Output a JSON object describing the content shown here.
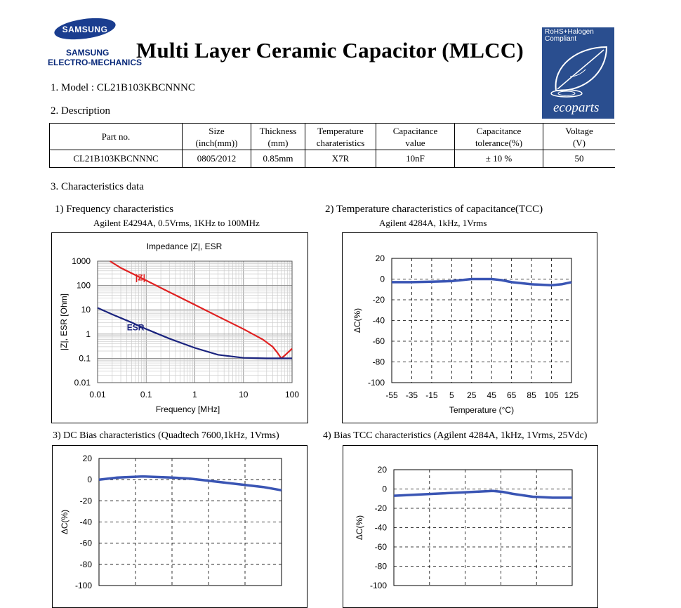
{
  "logo": {
    "brand": "SAMSUNG",
    "line1": "SAMSUNG",
    "line2": "ELECTRO-MECHANICS"
  },
  "title": "Multi Layer Ceramic Capacitor (MLCC)",
  "eco_badge": {
    "line1": "RoHS+Halogen",
    "line2": "Compliant",
    "brand": "ecoparts"
  },
  "model_line": "1. Model : CL21B103KBCNNNC",
  "description_heading": "2. Description",
  "spec_table": {
    "headers": [
      [
        "Part no."
      ],
      [
        "Size",
        "(inch(mm))"
      ],
      [
        "Thickness",
        "(mm)"
      ],
      [
        "Temperature",
        "charateristics"
      ],
      [
        "Capacitance",
        "value"
      ],
      [
        "Capacitance",
        "tolerance(%)"
      ],
      [
        "Voltage",
        "(V)"
      ]
    ],
    "row": [
      "CL21B103KBCNNNC",
      "0805/2012",
      "0.85mm",
      "X7R",
      "10nF",
      "± 10 %",
      "50"
    ]
  },
  "characteristics_heading": "3. Characteristics data",
  "charts": {
    "c1": {
      "heading": "1) Frequency characteristics",
      "sub": "Agilent E4294A, 0.5Vrms, 1KHz to 100MHz"
    },
    "c2": {
      "heading": "2) Temperature characteristics of capacitance(TCC)",
      "sub": "Agilent 4284A, 1kHz, 1Vrms"
    },
    "c3": {
      "heading": "3) DC Bias characteristics (Quadtech 7600,1kHz, 1Vrms)"
    },
    "c4": {
      "heading": "4) Bias TCC characteristics (Agilent 4284A, 1kHz, 1Vrms, 25Vdc)"
    }
  },
  "colors": {
    "impedance": "#e02020",
    "esr": "#1a237e",
    "tcc_line": "#3a55b4",
    "eco_bg": "#2a4e8f"
  },
  "chart_data": [
    {
      "type": "line",
      "title": "Impedance |Z|,  ESR",
      "xlabel": "Frequency [MHz]",
      "ylabel": "|Z|, ESR [Ohm]",
      "xscale": "log",
      "yscale": "log",
      "xlim": [
        0.01,
        100
      ],
      "ylim": [
        0.01,
        1000
      ],
      "x_ticks": [
        "0.01",
        "0.1",
        "1",
        "10",
        "100"
      ],
      "y_ticks": [
        "1000",
        "100",
        "10",
        "1",
        "0.1",
        "0.01"
      ],
      "grid": true,
      "series": [
        {
          "name": "|Z|",
          "color": "#e02020",
          "points": [
            [
              0.018,
              1000
            ],
            [
              0.03,
              530
            ],
            [
              0.1,
              160
            ],
            [
              0.3,
              53
            ],
            [
              1,
              16
            ],
            [
              3,
              5.3
            ],
            [
              10,
              1.6
            ],
            [
              25,
              0.6
            ],
            [
              40,
              0.3
            ],
            [
              50,
              0.17
            ],
            [
              60,
              0.1
            ],
            [
              70,
              0.13
            ],
            [
              100,
              0.25
            ]
          ]
        },
        {
          "name": "ESR",
          "color": "#1a237e",
          "points": [
            [
              0.01,
              12
            ],
            [
              0.02,
              6.5
            ],
            [
              0.05,
              3
            ],
            [
              0.1,
              1.6
            ],
            [
              0.3,
              0.65
            ],
            [
              1,
              0.27
            ],
            [
              3,
              0.14
            ],
            [
              10,
              0.105
            ],
            [
              30,
              0.1
            ],
            [
              60,
              0.1
            ],
            [
              100,
              0.1
            ]
          ]
        }
      ]
    },
    {
      "type": "line",
      "title": "",
      "xlabel": "Temperature (°C)",
      "ylabel": "ΔC(%)",
      "xlim": [
        -55,
        125
      ],
      "ylim": [
        -100,
        20
      ],
      "x_ticks": [
        "-55",
        "-35",
        "-15",
        "5",
        "25",
        "45",
        "65",
        "85",
        "105",
        "125"
      ],
      "y_ticks": [
        "20",
        "0",
        "-20",
        "-40",
        "-60",
        "-80",
        "-100"
      ],
      "grid": true,
      "series": [
        {
          "color": "#3a55b4",
          "points": [
            [
              -55,
              -3
            ],
            [
              -35,
              -3
            ],
            [
              -15,
              -2.5
            ],
            [
              5,
              -2
            ],
            [
              25,
              0
            ],
            [
              45,
              0
            ],
            [
              55,
              -1
            ],
            [
              65,
              -3
            ],
            [
              85,
              -5
            ],
            [
              105,
              -6
            ],
            [
              115,
              -5
            ],
            [
              125,
              -3
            ]
          ]
        }
      ]
    },
    {
      "type": "line",
      "title": "",
      "xlabel": "",
      "ylabel": "ΔC(%)",
      "xlim": [
        0,
        50
      ],
      "ylim": [
        -100,
        20
      ],
      "x_ticks": [],
      "y_ticks": [
        "20",
        "0",
        "-20",
        "-40",
        "-60",
        "-80",
        "-100"
      ],
      "grid": true,
      "series": [
        {
          "color": "#3a55b4",
          "points": [
            [
              0,
              0
            ],
            [
              5,
              2
            ],
            [
              12,
              3
            ],
            [
              20,
              2
            ],
            [
              25,
              1
            ],
            [
              35,
              -3
            ],
            [
              45,
              -7
            ],
            [
              50,
              -10
            ]
          ]
        }
      ]
    },
    {
      "type": "line",
      "title": "",
      "xlabel": "",
      "ylabel": "ΔC(%)",
      "xlim": [
        -55,
        125
      ],
      "ylim": [
        -100,
        20
      ],
      "x_ticks": [],
      "y_ticks": [
        "20",
        "0",
        "-20",
        "-40",
        "-60",
        "-80",
        "-100"
      ],
      "grid": true,
      "series": [
        {
          "color": "#3a55b4",
          "points": [
            [
              -55,
              -7
            ],
            [
              -35,
              -6
            ],
            [
              -15,
              -5
            ],
            [
              5,
              -4
            ],
            [
              25,
              -3
            ],
            [
              45,
              -2
            ],
            [
              55,
              -3
            ],
            [
              65,
              -5
            ],
            [
              85,
              -8
            ],
            [
              105,
              -9
            ],
            [
              125,
              -9
            ]
          ]
        }
      ]
    }
  ]
}
